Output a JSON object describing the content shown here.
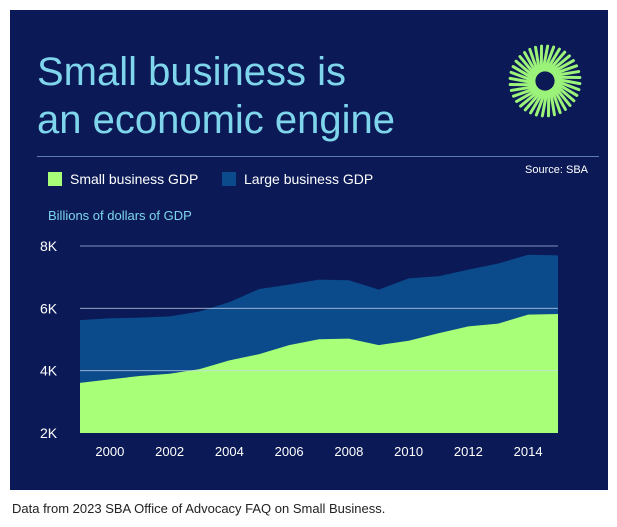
{
  "title": {
    "line1": "Small business is",
    "line2": "an economic engine"
  },
  "source": "Source: SBA",
  "units_label": "Billions of dollars of GDP",
  "caption": "Data from 2023 SBA Office of Advocacy FAQ on Small Business.",
  "colors": {
    "background": "#0b1a56",
    "small": "#a8ff78",
    "large": "#0b4a8b",
    "accent": "#7fd6ec",
    "logo": "#9cf37a"
  },
  "logo": {
    "icon": "sunburst-logo-icon"
  },
  "chart_data": {
    "type": "area",
    "stacked": false,
    "x": [
      1999,
      2000,
      2001,
      2002,
      2003,
      2004,
      2005,
      2006,
      2007,
      2008,
      2009,
      2010,
      2011,
      2012,
      2013,
      2014,
      2015
    ],
    "series": [
      {
        "name": "Large business GDP",
        "values": [
          5620,
          5680,
          5700,
          5740,
          5900,
          6200,
          6620,
          6760,
          6920,
          6900,
          6600,
          6960,
          7030,
          7240,
          7440,
          7720,
          7700
        ]
      },
      {
        "name": "Small business GDP",
        "values": [
          3610,
          3720,
          3830,
          3900,
          4050,
          4330,
          4530,
          4820,
          5010,
          5030,
          4820,
          4960,
          5200,
          5420,
          5510,
          5800,
          5820
        ]
      }
    ],
    "legend": [
      "Small business GDP",
      "Large business GDP"
    ],
    "ylabel": "Billions of dollars of GDP",
    "ylim": [
      2000,
      8000
    ],
    "yticks": [
      2000,
      4000,
      6000,
      8000
    ],
    "ytick_labels": [
      "2K",
      "4K",
      "6K",
      "8K"
    ],
    "xticks": [
      2000,
      2002,
      2004,
      2006,
      2008,
      2010,
      2012,
      2014
    ],
    "xtick_labels": [
      "2000",
      "2002",
      "2004",
      "2006",
      "2008",
      "2010",
      "2012",
      "2014"
    ],
    "legend_position": "top-left",
    "grid": true
  }
}
